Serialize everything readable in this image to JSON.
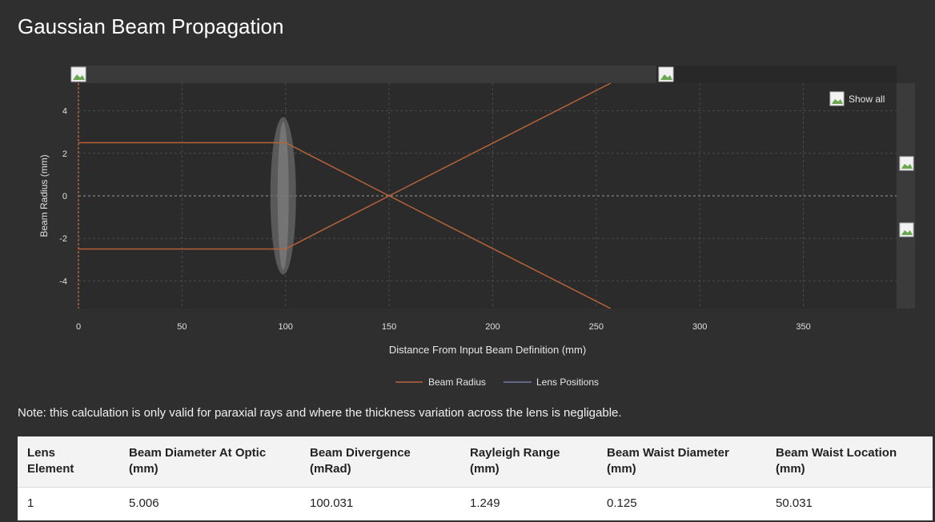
{
  "page": {
    "title": "Gaussian Beam Propagation"
  },
  "chart_controls": {
    "show_all_label": "Show all"
  },
  "chart_data": {
    "type": "line",
    "xlabel": "Distance From Input Beam Definition (mm)",
    "ylabel": "Beam Radius (mm)",
    "xlim": [
      0,
      395
    ],
    "ylim": [
      -5.3,
      5.3
    ],
    "x_ticks": [
      0,
      50,
      100,
      150,
      200,
      250,
      300,
      350
    ],
    "y_ticks": [
      4,
      2,
      0,
      -2,
      -4
    ],
    "grid": true,
    "legend_position": "bottom",
    "series": [
      {
        "name": "Beam Radius",
        "color": "#b5623a",
        "x": [
          0,
          100,
          150,
          257
        ],
        "y": [
          2.5,
          2.5,
          0.0,
          -5.3
        ]
      },
      {
        "name": "Beam Radius",
        "color": "#b5623a",
        "x": [
          0,
          100,
          150,
          257
        ],
        "y": [
          -2.5,
          -2.5,
          0.0,
          5.3
        ]
      },
      {
        "name": "Lens Positions",
        "color": "#9a9ab8",
        "lens_x": [
          100
        ]
      }
    ],
    "lens_half_height": 3.7
  },
  "note": "Note: this calculation is only valid for paraxial rays and where the thickness variation across the lens is negligable.",
  "table": {
    "headers": [
      [
        "Lens",
        "Element"
      ],
      [
        "Beam Diameter At Optic",
        "(mm)"
      ],
      [
        "Beam Divergence",
        "(mRad)"
      ],
      [
        "Rayleigh Range",
        "(mm)"
      ],
      [
        "Beam Waist Diameter",
        "(mm)"
      ],
      [
        "Beam Waist Location",
        "(mm)"
      ]
    ],
    "rows": [
      [
        "1",
        "5.006",
        "100.031",
        "1.249",
        "0.125",
        "50.031"
      ]
    ]
  }
}
